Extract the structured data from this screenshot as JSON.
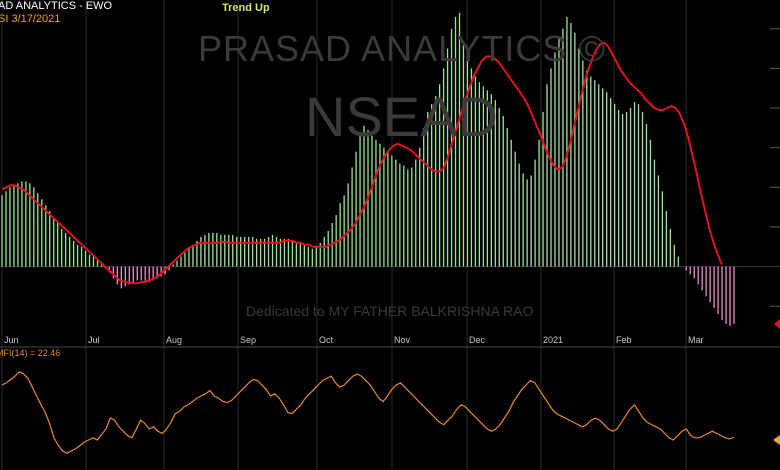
{
  "header": {
    "title": "AD ANALYTICS - EWO",
    "symbol_date": "SI   3/17/2021",
    "trend": "Trend Up"
  },
  "watermark": {
    "brand": "PRASAD ANALYTICS ©",
    "symbol": "NSEAD",
    "dedication": "Dedicated to MY FATHER   BALKRISHNA RAO"
  },
  "colors": {
    "title": "#ffffff",
    "date": "#ff9c1a",
    "trend": "#d8e86a",
    "positive_bar": "#9fe39a",
    "negative_bar": "#f08ad0",
    "signal_line": "#e0141e",
    "mfi_line": "#e88a2a",
    "price_marker": "#e0141e",
    "mfi_marker": "#f0a040",
    "axis_text": "#c8c8c8"
  },
  "chart_data": [
    {
      "type": "bar",
      "name": "EWO",
      "month_labels": [
        "Jun",
        "Jul",
        "Aug",
        "Sep",
        "Oct",
        "Nov",
        "Dec",
        "2021",
        "Feb",
        "Mar"
      ],
      "ylim": [
        -1.6,
        6.6
      ],
      "zero": 0,
      "values": [
        1.8,
        1.9,
        2.0,
        2.05,
        2.1,
        2.15,
        2.15,
        2.1,
        2.0,
        1.85,
        1.7,
        1.55,
        1.4,
        1.25,
        1.1,
        0.95,
        0.85,
        0.75,
        0.65,
        0.55,
        0.5,
        0.4,
        0.3,
        0.25,
        0.15,
        0.05,
        -0.05,
        -0.15,
        -0.3,
        -0.45,
        -0.55,
        -0.5,
        -0.45,
        -0.4,
        -0.35,
        -0.35,
        -0.4,
        -0.4,
        -0.35,
        -0.3,
        -0.25,
        -0.2,
        -0.1,
        0.05,
        0.15,
        0.25,
        0.35,
        0.45,
        0.55,
        0.65,
        0.75,
        0.8,
        0.85,
        0.85,
        0.85,
        0.8,
        0.8,
        0.8,
        0.8,
        0.75,
        0.75,
        0.75,
        0.75,
        0.75,
        0.7,
        0.7,
        0.7,
        0.75,
        0.8,
        0.75,
        0.7,
        0.7,
        0.7,
        0.65,
        0.6,
        0.6,
        0.55,
        0.5,
        0.45,
        0.5,
        0.6,
        0.75,
        0.9,
        1.1,
        1.3,
        1.6,
        1.8,
        2.1,
        2.5,
        2.9,
        3.3,
        3.55,
        3.45,
        3.3,
        3.2,
        3.1,
        3.0,
        2.9,
        2.8,
        2.7,
        2.6,
        2.55,
        2.45,
        2.5,
        2.7,
        3.0,
        3.5,
        3.9,
        4.1,
        4.3,
        4.6,
        5.0,
        5.5,
        6.0,
        6.3,
        6.4,
        5.6,
        5.3,
        5.0,
        4.8,
        4.65,
        4.55,
        4.45,
        4.35,
        4.2,
        4.0,
        3.8,
        3.5,
        3.2,
        2.9,
        2.6,
        2.35,
        2.2,
        2.3,
        2.7,
        3.2,
        3.9,
        4.6,
        5.0,
        5.4,
        5.8,
        6.0,
        6.3,
        6.15,
        5.9,
        5.5,
        5.2,
        4.95,
        4.8,
        4.7,
        4.6,
        4.5,
        4.4,
        4.25,
        4.1,
        3.95,
        3.85,
        3.9,
        4.0,
        4.15,
        4.1,
        3.9,
        3.6,
        3.2,
        2.7,
        2.3,
        1.9,
        1.4,
        0.95,
        0.55,
        0.25,
        0.0,
        -0.1,
        -0.2,
        -0.3,
        -0.45,
        -0.6,
        -0.75,
        -0.9,
        -1.05,
        -1.2,
        -1.35,
        -1.45,
        -1.5,
        -1.45
      ],
      "signal": [
        1.95,
        2.0,
        2.05,
        2.05,
        2.0,
        1.95,
        1.85,
        1.75,
        1.65,
        1.55,
        1.45,
        1.35,
        1.25,
        1.15,
        1.05,
        0.95,
        0.85,
        0.75,
        0.65,
        0.55,
        0.45,
        0.35,
        0.25,
        0.15,
        0.05,
        -0.05,
        -0.15,
        -0.25,
        -0.35,
        -0.38,
        -0.4,
        -0.42,
        -0.42,
        -0.4,
        -0.38,
        -0.35,
        -0.3,
        -0.25,
        -0.15,
        -0.05,
        0.05,
        0.15,
        0.25,
        0.35,
        0.45,
        0.5,
        0.55,
        0.6,
        0.6,
        0.6,
        0.6,
        0.6,
        0.62,
        0.62,
        0.6,
        0.6,
        0.6,
        0.6,
        0.6,
        0.6,
        0.6,
        0.6,
        0.6,
        0.6,
        0.6,
        0.6,
        0.6,
        0.65,
        0.65,
        0.65,
        0.6,
        0.6,
        0.55,
        0.55,
        0.5,
        0.5,
        0.5,
        0.5,
        0.55,
        0.6,
        0.65,
        0.75,
        0.85,
        0.95,
        1.1,
        1.3,
        1.5,
        1.75,
        2.05,
        2.35,
        2.6,
        2.8,
        2.95,
        3.05,
        3.1,
        3.05,
        3.0,
        2.95,
        2.85,
        2.75,
        2.65,
        2.55,
        2.45,
        2.4,
        2.4,
        2.5,
        2.8,
        3.15,
        3.5,
        3.85,
        4.2,
        4.5,
        4.8,
        5.0,
        5.2,
        5.3,
        5.3,
        5.25,
        5.15,
        5.0,
        4.85,
        4.7,
        4.55,
        4.4,
        4.25,
        4.05,
        3.8,
        3.55,
        3.3,
        3.0,
        2.75,
        2.55,
        2.45,
        2.5,
        2.75,
        3.15,
        3.6,
        4.05,
        4.5,
        4.9,
        5.2,
        5.45,
        5.6,
        5.65,
        5.55,
        5.35,
        5.15,
        4.95,
        4.8,
        4.65,
        4.55,
        4.45,
        4.35,
        4.2,
        4.1,
        4.0,
        3.95,
        3.95,
        4.0,
        4.05,
        4.0,
        3.85,
        3.6,
        3.25,
        2.8,
        2.35,
        1.85,
        1.4,
        0.95,
        0.6,
        0.3,
        0.05
      ]
    },
    {
      "type": "line",
      "name": "MFI(14)",
      "legend": "MFI(14) = 22.46",
      "last_value": 22.46,
      "ylim": [
        0,
        100
      ],
      "values": [
        70,
        72,
        75,
        78,
        82,
        80,
        76,
        68,
        60,
        52,
        45,
        35,
        22,
        15,
        10,
        8,
        10,
        12,
        15,
        18,
        20,
        22,
        20,
        25,
        30,
        40,
        38,
        32,
        28,
        24,
        22,
        30,
        38,
        35,
        30,
        32,
        28,
        26,
        30,
        36,
        44,
        46,
        50,
        52,
        55,
        58,
        60,
        62,
        65,
        60,
        58,
        55,
        54,
        56,
        60,
        64,
        68,
        72,
        75,
        74,
        70,
        66,
        60,
        62,
        58,
        52,
        45,
        44,
        48,
        52,
        58,
        62,
        66,
        70,
        74,
        76,
        78,
        72,
        68,
        70,
        74,
        78,
        80,
        78,
        74,
        70,
        64,
        58,
        55,
        60,
        66,
        70,
        72,
        68,
        64,
        60,
        56,
        52,
        48,
        44,
        40,
        36,
        34,
        38,
        42,
        48,
        52,
        50,
        46,
        42,
        38,
        34,
        30,
        28,
        30,
        34,
        40,
        46,
        54,
        60,
        66,
        70,
        74,
        72,
        66,
        60,
        54,
        48,
        44,
        42,
        40,
        38,
        36,
        34,
        32,
        34,
        38,
        40,
        38,
        34,
        30,
        28,
        30,
        36,
        42,
        48,
        52,
        46,
        40,
        36,
        34,
        32,
        30,
        26,
        22,
        20,
        24,
        28,
        30,
        24,
        22,
        22,
        24,
        26,
        28,
        26,
        24,
        22,
        21,
        22.46
      ]
    }
  ]
}
